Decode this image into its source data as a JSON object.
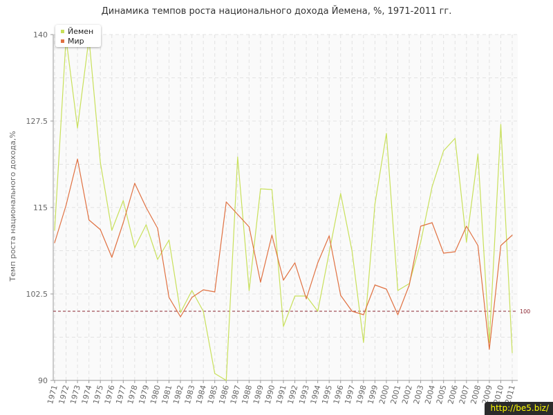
{
  "chart_data": {
    "type": "line",
    "title": "Динамика темпов роста национального дохода Йемена, %, 1971-2011 гг.",
    "xlabel": "",
    "ylabel": "Темп роста национального дохода,%",
    "x": [
      "1971",
      "1972",
      "1973",
      "1974",
      "1975",
      "1976",
      "1977",
      "1978",
      "1979",
      "1980",
      "1981",
      "1982",
      "1983",
      "1984",
      "1985",
      "1986",
      "1987",
      "1988",
      "1989",
      "1990",
      "1991",
      "1992",
      "1993",
      "1994",
      "1995",
      "1996",
      "1997",
      "1998",
      "1999",
      "2000",
      "2001",
      "2002",
      "2003",
      "2004",
      "2005",
      "2006",
      "2007",
      "2008",
      "2009",
      "2010",
      "2011"
    ],
    "ylim": [
      90,
      140
    ],
    "yticks": [
      "140",
      "127.5",
      "115",
      "102.5",
      "90"
    ],
    "grid": true,
    "legend_position": "top-left",
    "series": [
      {
        "name": "Йемен",
        "color": "#c8e05a",
        "values": [
          111.7,
          139.5,
          126.5,
          139.5,
          121.5,
          111.7,
          116.0,
          109.2,
          112.5,
          107.5,
          110.3,
          99.8,
          103.0,
          100.0,
          91.0,
          90.0,
          122.3,
          103.0,
          117.7,
          117.6,
          97.8,
          102.2,
          102.2,
          100.0,
          108.5,
          117.0,
          108.7,
          95.5,
          115.5,
          125.7,
          103.0,
          104.0,
          110.0,
          118.0,
          123.2,
          125.0,
          110.0,
          122.7,
          95.5,
          127.0,
          94.0
        ]
      },
      {
        "name": "Мир",
        "color": "#e07040",
        "values": [
          109.9,
          115.3,
          122.0,
          113.2,
          111.8,
          107.8,
          112.8,
          118.5,
          115.0,
          112.0,
          102.0,
          99.2,
          102.0,
          103.1,
          102.8,
          115.8,
          114.0,
          112.2,
          104.2,
          111.0,
          104.5,
          107.0,
          101.8,
          107.0,
          110.9,
          102.3,
          100.0,
          99.5,
          103.8,
          103.2,
          99.5,
          103.8,
          112.3,
          112.8,
          108.4,
          108.6,
          112.3,
          109.5,
          94.5,
          109.5,
          111.0
        ]
      }
    ],
    "reference_line": {
      "value": 100,
      "label": "100",
      "color": "#8b2530"
    }
  },
  "watermark": "http://be5.biz/"
}
